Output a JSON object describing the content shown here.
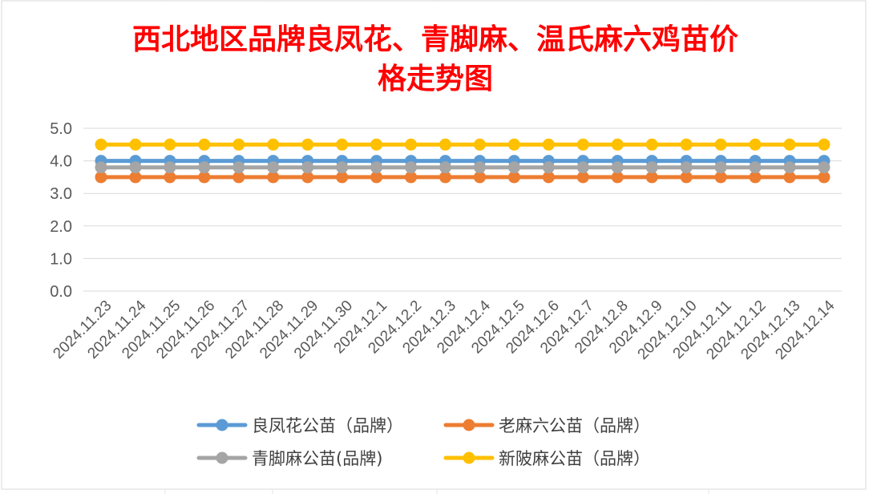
{
  "chart_data": {
    "type": "line",
    "title_lines": [
      "西北地区品牌良凤花、青脚麻、温氏麻六鸡苗价",
      "格走势图"
    ],
    "xlabel": "",
    "ylabel": "",
    "ylim": [
      0,
      5
    ],
    "yticks": [
      "0.0",
      "1.0",
      "2.0",
      "3.0",
      "4.0",
      "5.0"
    ],
    "grid": true,
    "legend_position": "bottom",
    "categories": [
      "2024.11.23",
      "2024.11.24",
      "2024.11.25",
      "2024.11.26",
      "2024.11.27",
      "2024.11.28",
      "2024.11.29",
      "2024.11.30",
      "2024.12.1",
      "2024.12.2",
      "2024.12.3",
      "2024.12.4",
      "2024.12.5",
      "2024.12.6",
      "2024.12.7",
      "2024.12.8",
      "2024.12.9",
      "2024.12.10",
      "2024.12.11",
      "2024.12.12",
      "2024.12.13",
      "2024.12.14"
    ],
    "series": [
      {
        "name": "良凤花公苗（品牌）",
        "color": "#5b9bd5",
        "values": [
          4.0,
          4.0,
          4.0,
          4.0,
          4.0,
          4.0,
          4.0,
          4.0,
          4.0,
          4.0,
          4.0,
          4.0,
          4.0,
          4.0,
          4.0,
          4.0,
          4.0,
          4.0,
          4.0,
          4.0,
          4.0,
          4.0
        ]
      },
      {
        "name": "老麻六公苗（品牌）",
        "color": "#ed7d31",
        "values": [
          3.5,
          3.5,
          3.5,
          3.5,
          3.5,
          3.5,
          3.5,
          3.5,
          3.5,
          3.5,
          3.5,
          3.5,
          3.5,
          3.5,
          3.5,
          3.5,
          3.5,
          3.5,
          3.5,
          3.5,
          3.5,
          3.5
        ]
      },
      {
        "name": "青脚麻公苗(品牌)",
        "color": "#a5a5a5",
        "values": [
          3.8,
          3.8,
          3.8,
          3.8,
          3.8,
          3.8,
          3.8,
          3.8,
          3.8,
          3.8,
          3.8,
          3.8,
          3.8,
          3.8,
          3.8,
          3.8,
          3.8,
          3.8,
          3.8,
          3.8,
          3.8,
          3.8
        ]
      },
      {
        "name": "新陂麻公苗（品牌）",
        "color": "#ffc000",
        "values": [
          4.5,
          4.5,
          4.5,
          4.5,
          4.5,
          4.5,
          4.5,
          4.5,
          4.5,
          4.5,
          4.5,
          4.5,
          4.5,
          4.5,
          4.5,
          4.5,
          4.5,
          4.5,
          4.5,
          4.5,
          4.5,
          4.5
        ]
      }
    ],
    "colors": {
      "title": "#ff0000",
      "axis_text": "#595959",
      "gridline": "#d9d9d9",
      "border": "#d9d9d9",
      "sheet_grid": "#e6e6e6"
    }
  }
}
